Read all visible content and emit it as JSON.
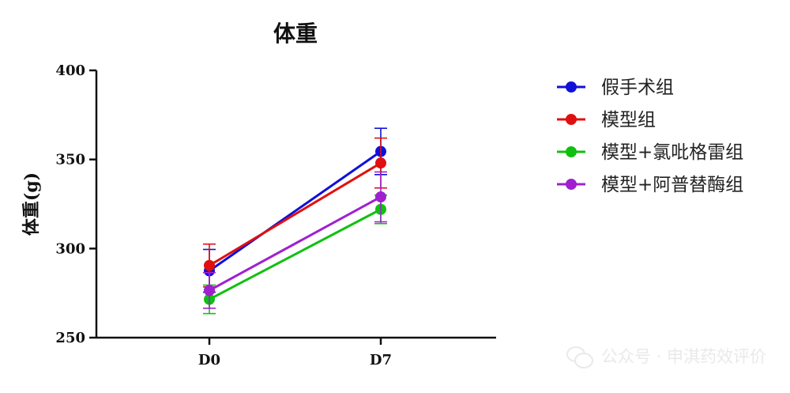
{
  "watermark": {
    "text": "公众号 · 申淇药效评价",
    "icon": "wechat-icon"
  },
  "chart_data": {
    "type": "line",
    "title": "体重",
    "xlabel": "",
    "ylabel": "体重(g)",
    "categories": [
      "D0",
      "D7"
    ],
    "ylim": [
      250,
      400
    ],
    "yticks": [
      250,
      300,
      350,
      400
    ],
    "grid": false,
    "legend_position": "right",
    "series": [
      {
        "name": "假手术组",
        "color": "#1010d8",
        "values": [
          287.5,
          354.5
        ],
        "errors": [
          12,
          13
        ]
      },
      {
        "name": "模型组",
        "color": "#e01010",
        "values": [
          290.5,
          348
        ],
        "errors": [
          12,
          14
        ]
      },
      {
        "name": "模型+氯吡格雷组",
        "color": "#10c010",
        "values": [
          271.5,
          322
        ],
        "errors": [
          8,
          8
        ]
      },
      {
        "name": "模型+阿普替酶组",
        "color": "#a020d0",
        "values": [
          276.5,
          329
        ],
        "errors": [
          10,
          14
        ]
      }
    ]
  }
}
